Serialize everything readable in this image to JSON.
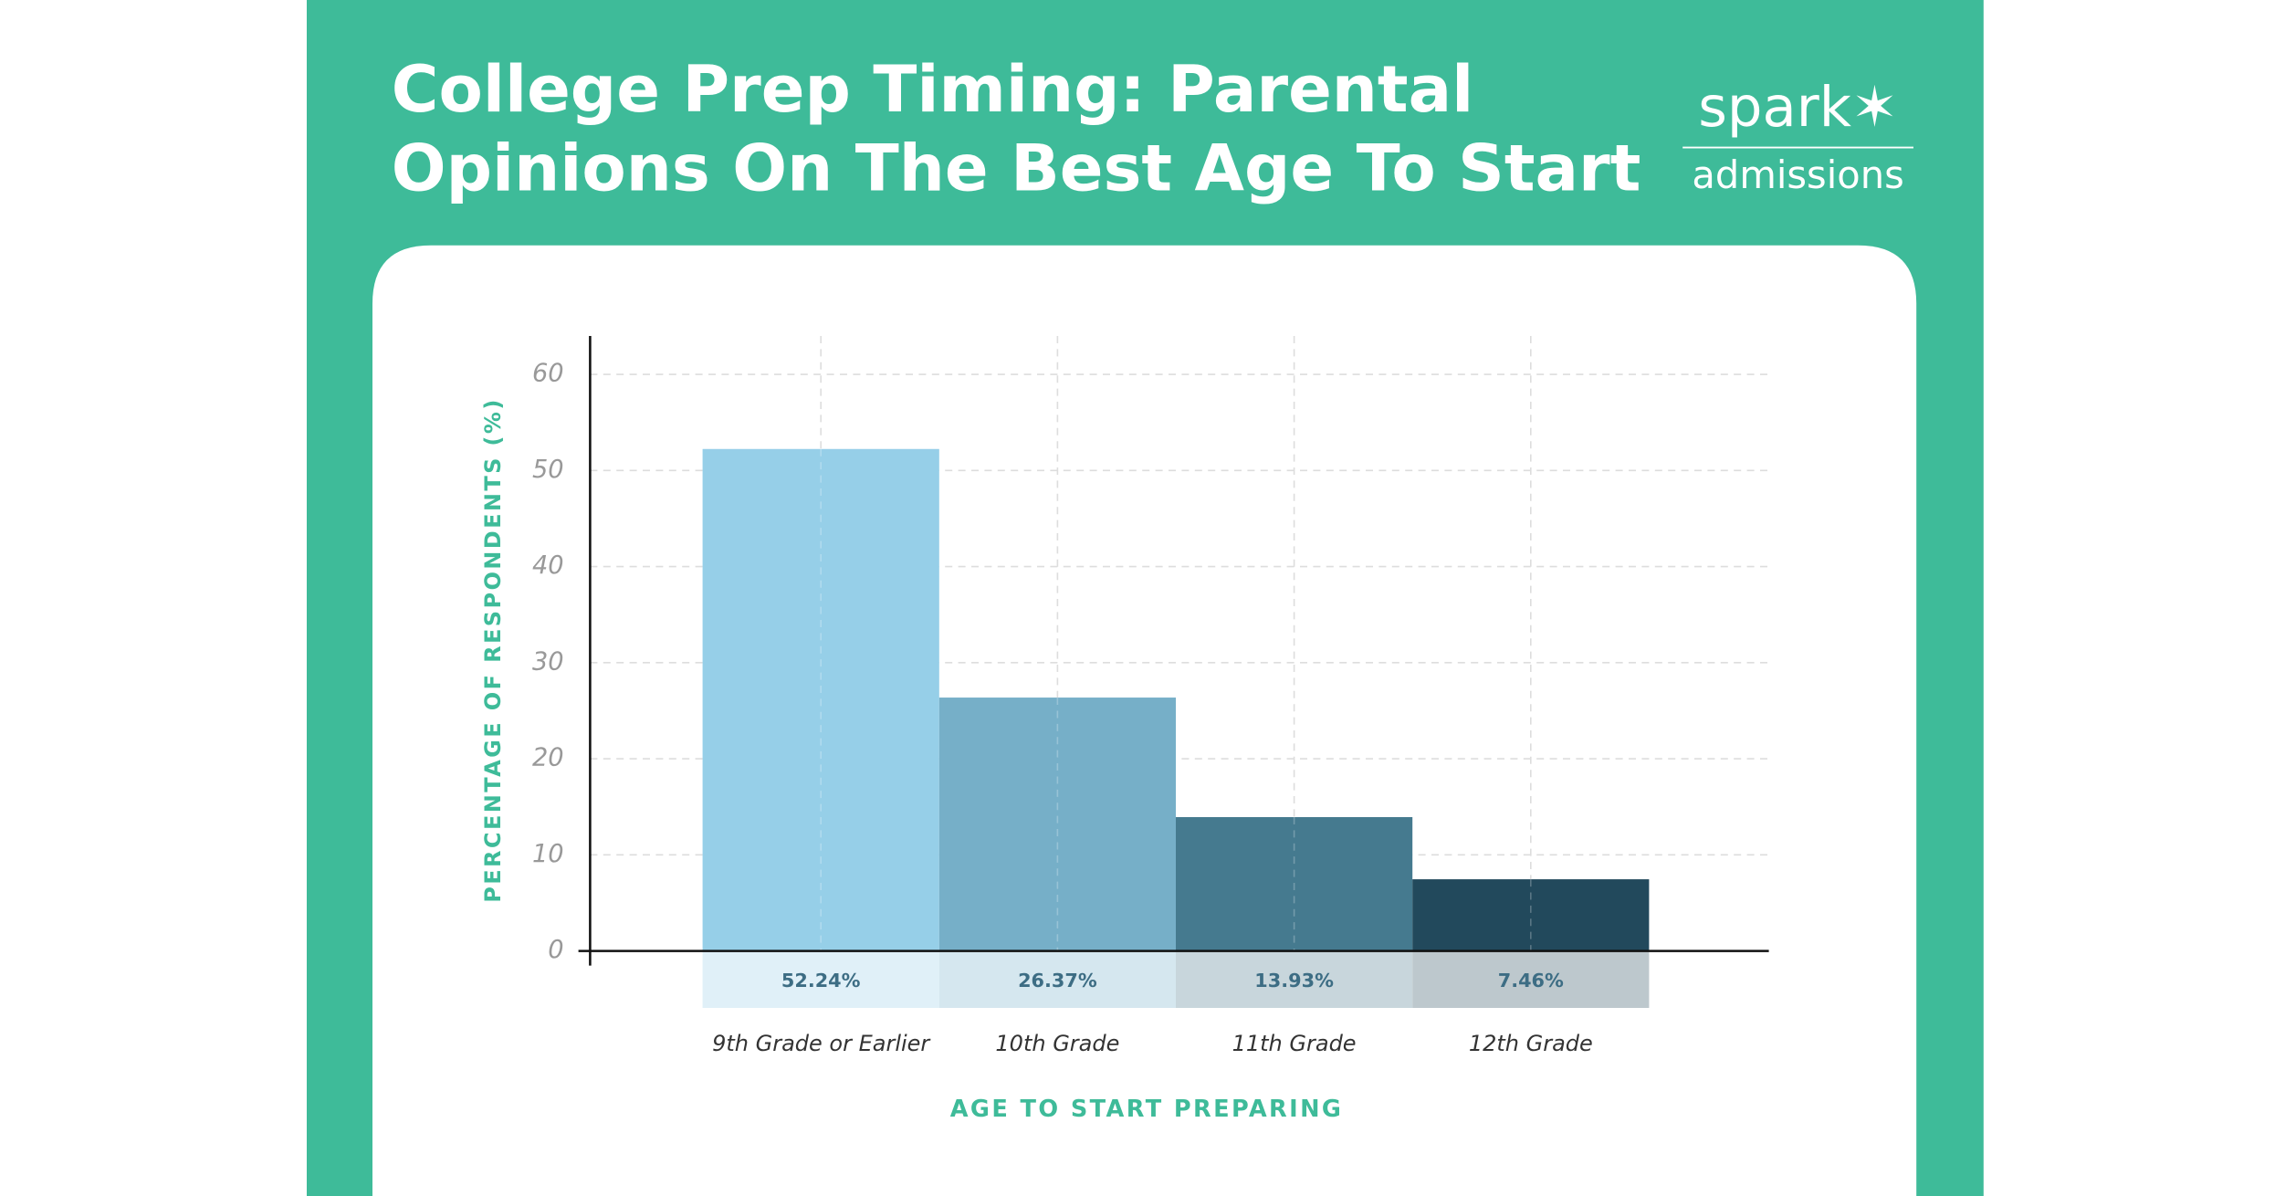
{
  "chart_data": {
    "type": "bar",
    "title": [
      "College Prep Timing: Parental",
      "Opinions On The Best Age To Start"
    ],
    "logo": {
      "brand": "spark✶",
      "sub": "admissions"
    },
    "categories": [
      "9th Grade or Earlier",
      "10th Grade",
      "11th Grade",
      "12th Grade"
    ],
    "values": [
      52.24,
      26.37,
      13.93,
      7.46
    ],
    "value_labels": [
      "52.24%",
      "26.37%",
      "13.93%",
      "7.46%"
    ],
    "colors": [
      "#96cfe8",
      "#76afc8",
      "#457a8f",
      "#22495c"
    ],
    "label_band_colors": [
      "#e0f0f8",
      "#d5e7ef",
      "#c8d6dc",
      "#bdc8cd"
    ],
    "x_label": "AGE TO START PREPARING",
    "y_label": "PERCENTAGE OF RESPONDENTS (%)",
    "ylim": [
      0,
      64
    ],
    "yticks": [
      0,
      10,
      20,
      30,
      40,
      50,
      60
    ],
    "grid": true
  }
}
